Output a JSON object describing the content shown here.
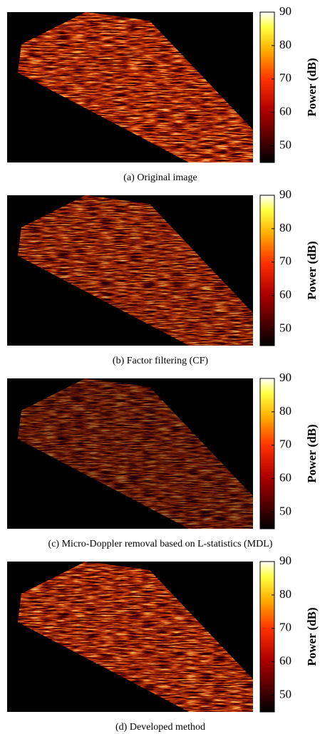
{
  "panels": [
    {
      "caption": "(a) Original image"
    },
    {
      "caption": "(b) Factor filtering (CF)"
    },
    {
      "caption": "(c) Micro-Doppler removal based on L-statistics (MDL)"
    },
    {
      "caption": "(d) Developed method"
    }
  ],
  "colorbar": {
    "label": "Power (dB)",
    "lim": [
      45,
      90
    ],
    "ticks": [
      50,
      60,
      70,
      80,
      90
    ]
  }
}
